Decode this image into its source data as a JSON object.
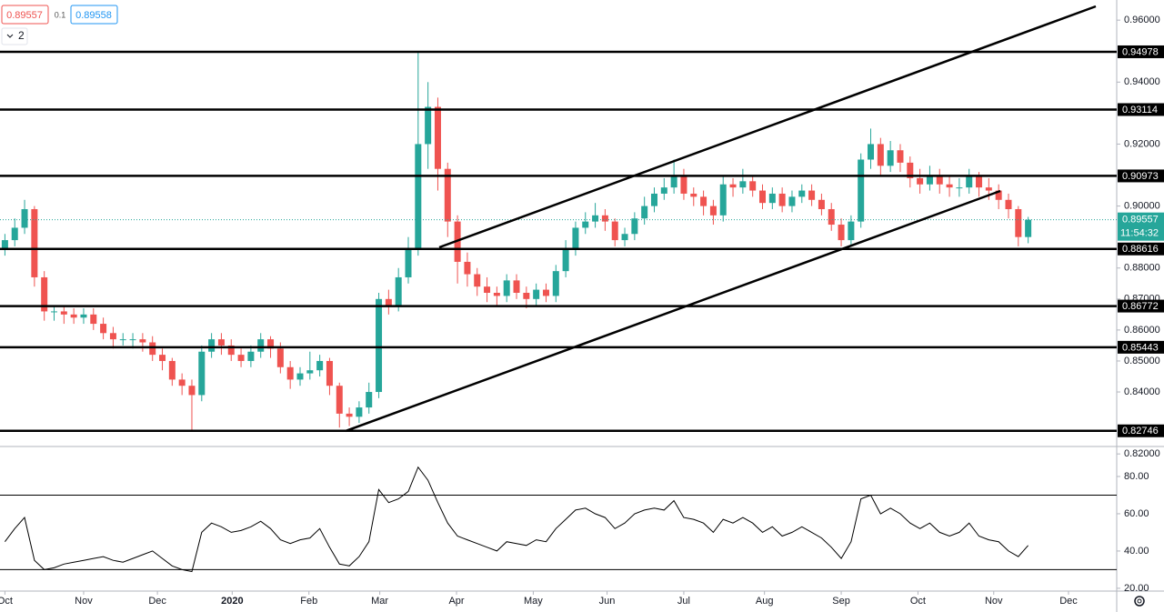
{
  "header": {
    "open_label": "0.89557",
    "spread": "0.1",
    "ask_label": "0.89558",
    "indicator_count": "2"
  },
  "chart_data": [
    {
      "type": "candlestick",
      "up_color": "#26a69a",
      "down_color": "#ef5350",
      "level_color": "#000000",
      "ylim": [
        0.8224,
        0.9665
      ],
      "yticks": [
        {
          "value": 0.96,
          "label": "0.96000"
        },
        {
          "value": 0.94,
          "label": "0.94000"
        },
        {
          "value": 0.92,
          "label": "0.92000"
        },
        {
          "value": 0.9,
          "label": "0.90000"
        },
        {
          "value": 0.88,
          "label": "0.88000"
        },
        {
          "value": 0.87,
          "label": "0.87000"
        },
        {
          "value": 0.86,
          "label": "0.86000"
        },
        {
          "value": 0.85,
          "label": "0.85000"
        },
        {
          "value": 0.84,
          "label": "0.84000"
        },
        {
          "value": 0.82,
          "label": "0.82000"
        }
      ],
      "xlim": [
        -0.5,
        113
      ],
      "xticks": [
        {
          "value": 0,
          "label": "Oct"
        },
        {
          "value": 8,
          "label": "Nov"
        },
        {
          "value": 15.5,
          "label": "Dec"
        },
        {
          "value": 23.1,
          "label": "2020"
        },
        {
          "value": 30.9,
          "label": "Feb"
        },
        {
          "value": 38.1,
          "label": "Mar"
        },
        {
          "value": 45.9,
          "label": "Apr"
        },
        {
          "value": 53.7,
          "label": "May"
        },
        {
          "value": 61.2,
          "label": "Jun"
        },
        {
          "value": 69,
          "label": "Jul"
        },
        {
          "value": 77.2,
          "label": "Aug"
        },
        {
          "value": 85,
          "label": "Sep"
        },
        {
          "value": 92.8,
          "label": "Oct"
        },
        {
          "value": 100.5,
          "label": "Nov"
        },
        {
          "value": 108.1,
          "label": "Dec"
        }
      ],
      "levels": [
        0.94978,
        0.93114,
        0.90973,
        0.88616,
        0.86772,
        0.85443,
        0.82746
      ],
      "countdown": "11:54:32",
      "ohlc": [
        [
          0.886,
          0.891,
          0.884,
          0.889
        ],
        [
          0.889,
          0.896,
          0.887,
          0.893
        ],
        [
          0.893,
          0.902,
          0.891,
          0.899
        ],
        [
          0.899,
          0.9,
          0.874,
          0.877
        ],
        [
          0.877,
          0.879,
          0.863,
          0.866
        ],
        [
          0.866,
          0.868,
          0.863,
          0.866
        ],
        [
          0.866,
          0.868,
          0.862,
          0.865
        ],
        [
          0.865,
          0.867,
          0.862,
          0.864
        ],
        [
          0.864,
          0.867,
          0.862,
          0.865
        ],
        [
          0.865,
          0.867,
          0.86,
          0.862
        ],
        [
          0.862,
          0.864,
          0.857,
          0.859
        ],
        [
          0.859,
          0.861,
          0.854,
          0.857
        ],
        [
          0.857,
          0.859,
          0.855,
          0.857
        ],
        [
          0.857,
          0.859,
          0.854,
          0.857
        ],
        [
          0.857,
          0.859,
          0.853,
          0.856
        ],
        [
          0.856,
          0.858,
          0.85,
          0.852
        ],
        [
          0.852,
          0.854,
          0.847,
          0.85
        ],
        [
          0.85,
          0.851,
          0.842,
          0.844
        ],
        [
          0.844,
          0.846,
          0.839,
          0.842
        ],
        [
          0.842,
          0.844,
          0.8275,
          0.839
        ],
        [
          0.839,
          0.855,
          0.837,
          0.853
        ],
        [
          0.853,
          0.859,
          0.851,
          0.857
        ],
        [
          0.857,
          0.859,
          0.852,
          0.855
        ],
        [
          0.855,
          0.857,
          0.85,
          0.852
        ],
        [
          0.852,
          0.854,
          0.848,
          0.85
        ],
        [
          0.85,
          0.855,
          0.848,
          0.853
        ],
        [
          0.853,
          0.859,
          0.851,
          0.857
        ],
        [
          0.857,
          0.858,
          0.851,
          0.854
        ],
        [
          0.854,
          0.856,
          0.846,
          0.848
        ],
        [
          0.848,
          0.85,
          0.841,
          0.844
        ],
        [
          0.844,
          0.848,
          0.842,
          0.846
        ],
        [
          0.846,
          0.853,
          0.844,
          0.847
        ],
        [
          0.847,
          0.852,
          0.845,
          0.85
        ],
        [
          0.85,
          0.851,
          0.839,
          0.842
        ],
        [
          0.842,
          0.843,
          0.8285,
          0.833
        ],
        [
          0.833,
          0.835,
          0.829,
          0.832
        ],
        [
          0.832,
          0.837,
          0.83,
          0.835
        ],
        [
          0.835,
          0.843,
          0.833,
          0.84
        ],
        [
          0.84,
          0.872,
          0.838,
          0.87
        ],
        [
          0.87,
          0.873,
          0.865,
          0.868
        ],
        [
          0.868,
          0.88,
          0.866,
          0.877
        ],
        [
          0.877,
          0.89,
          0.875,
          0.886
        ],
        [
          0.886,
          0.9498,
          0.884,
          0.92
        ],
        [
          0.92,
          0.94,
          0.912,
          0.932
        ],
        [
          0.932,
          0.935,
          0.905,
          0.912
        ],
        [
          0.912,
          0.914,
          0.89,
          0.895
        ],
        [
          0.895,
          0.897,
          0.875,
          0.882
        ],
        [
          0.882,
          0.885,
          0.874,
          0.878
        ],
        [
          0.878,
          0.88,
          0.871,
          0.874
        ],
        [
          0.874,
          0.877,
          0.869,
          0.872
        ],
        [
          0.872,
          0.874,
          0.868,
          0.871
        ],
        [
          0.871,
          0.878,
          0.869,
          0.876
        ],
        [
          0.876,
          0.878,
          0.87,
          0.872
        ],
        [
          0.872,
          0.874,
          0.867,
          0.87
        ],
        [
          0.87,
          0.875,
          0.868,
          0.873
        ],
        [
          0.873,
          0.875,
          0.869,
          0.871
        ],
        [
          0.871,
          0.881,
          0.869,
          0.879
        ],
        [
          0.879,
          0.889,
          0.877,
          0.886
        ],
        [
          0.886,
          0.895,
          0.884,
          0.893
        ],
        [
          0.893,
          0.898,
          0.891,
          0.895
        ],
        [
          0.895,
          0.901,
          0.893,
          0.897
        ],
        [
          0.897,
          0.899,
          0.892,
          0.895
        ],
        [
          0.895,
          0.896,
          0.887,
          0.889
        ],
        [
          0.889,
          0.893,
          0.887,
          0.891
        ],
        [
          0.891,
          0.898,
          0.889,
          0.896
        ],
        [
          0.896,
          0.903,
          0.894,
          0.9
        ],
        [
          0.9,
          0.906,
          0.898,
          0.904
        ],
        [
          0.904,
          0.909,
          0.902,
          0.906
        ],
        [
          0.906,
          0.915,
          0.904,
          0.91
        ],
        [
          0.91,
          0.912,
          0.902,
          0.904
        ],
        [
          0.904,
          0.906,
          0.9,
          0.903
        ],
        [
          0.903,
          0.905,
          0.897,
          0.9
        ],
        [
          0.9,
          0.902,
          0.894,
          0.897
        ],
        [
          0.897,
          0.91,
          0.895,
          0.907
        ],
        [
          0.907,
          0.909,
          0.903,
          0.906
        ],
        [
          0.906,
          0.912,
          0.904,
          0.908
        ],
        [
          0.908,
          0.91,
          0.903,
          0.905
        ],
        [
          0.905,
          0.907,
          0.899,
          0.901
        ],
        [
          0.901,
          0.906,
          0.899,
          0.904
        ],
        [
          0.904,
          0.906,
          0.898,
          0.9
        ],
        [
          0.9,
          0.905,
          0.898,
          0.903
        ],
        [
          0.903,
          0.907,
          0.901,
          0.905
        ],
        [
          0.905,
          0.907,
          0.9,
          0.902
        ],
        [
          0.902,
          0.904,
          0.897,
          0.899
        ],
        [
          0.899,
          0.901,
          0.892,
          0.894
        ],
        [
          0.894,
          0.896,
          0.887,
          0.889
        ],
        [
          0.889,
          0.897,
          0.887,
          0.895
        ],
        [
          0.895,
          0.917,
          0.893,
          0.915
        ],
        [
          0.915,
          0.925,
          0.912,
          0.92
        ],
        [
          0.92,
          0.922,
          0.91,
          0.913
        ],
        [
          0.913,
          0.921,
          0.911,
          0.918
        ],
        [
          0.918,
          0.92,
          0.911,
          0.914
        ],
        [
          0.914,
          0.916,
          0.906,
          0.909
        ],
        [
          0.909,
          0.912,
          0.904,
          0.907
        ],
        [
          0.907,
          0.913,
          0.905,
          0.91
        ],
        [
          0.91,
          0.912,
          0.904,
          0.907
        ],
        [
          0.907,
          0.91,
          0.903,
          0.906
        ],
        [
          0.906,
          0.909,
          0.903,
          0.906
        ],
        [
          0.906,
          0.912,
          0.904,
          0.91
        ],
        [
          0.91,
          0.911,
          0.903,
          0.906
        ],
        [
          0.906,
          0.909,
          0.902,
          0.905
        ],
        [
          0.905,
          0.907,
          0.899,
          0.902
        ],
        [
          0.902,
          0.904,
          0.896,
          0.899
        ],
        [
          0.899,
          0.9,
          0.887,
          0.89
        ],
        [
          0.89,
          0.8965,
          0.888,
          0.89557
        ]
      ]
    },
    {
      "type": "line",
      "color": "#000000",
      "ylim": [
        18.5,
        95.6
      ],
      "yticks": [
        {
          "value": 80,
          "label": "80.00"
        },
        {
          "value": 60,
          "label": "60.00"
        },
        {
          "value": 40,
          "label": "40.00"
        },
        {
          "value": 20,
          "label": "20.00"
        }
      ],
      "bands": [
        70,
        30
      ],
      "values": [
        45,
        52,
        58,
        35,
        30,
        31,
        33,
        34,
        35,
        36,
        37,
        35,
        34,
        36,
        38,
        40,
        36,
        32,
        30,
        29,
        50,
        55,
        53,
        50,
        51,
        53,
        56,
        52,
        46,
        44,
        46,
        47,
        52,
        42,
        33,
        32,
        37,
        45,
        73,
        66,
        68,
        72,
        85,
        78,
        66,
        55,
        48,
        46,
        44,
        42,
        40,
        45,
        44,
        43,
        46,
        45,
        52,
        57,
        62,
        63,
        60,
        58,
        52,
        55,
        60,
        62,
        63,
        62,
        67,
        58,
        57,
        55,
        50,
        57,
        55,
        58,
        55,
        50,
        53,
        48,
        50,
        53,
        50,
        47,
        42,
        36,
        45,
        68,
        70,
        60,
        63,
        60,
        55,
        52,
        55,
        50,
        48,
        50,
        55,
        48,
        46,
        45,
        40,
        37,
        43
      ]
    }
  ]
}
